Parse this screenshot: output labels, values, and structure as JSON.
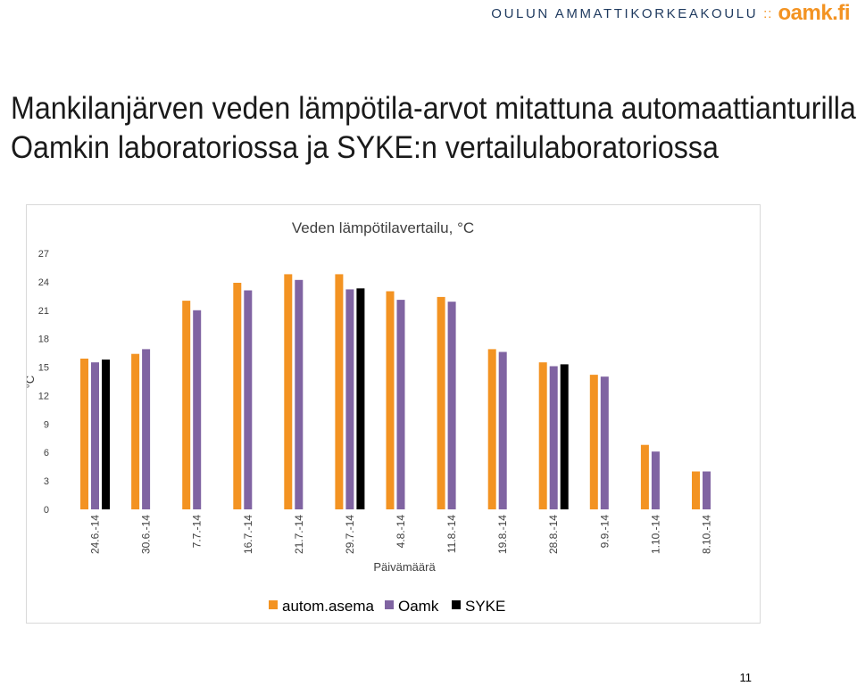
{
  "header": {
    "school_name": "OULUN AMMATTIKORKEAKOULU",
    "separator": "::",
    "logo": "oamk.fi",
    "accent_color": "#f39322"
  },
  "slide": {
    "title_line1": "Mankilanjärven veden lämpötila-arvot mitattuna automaattianturilla",
    "title_line2": "Oamkin laboratoriossa ja SYKE:n vertailulaboratoriossa",
    "page_number": "11"
  },
  "chart_data": {
    "type": "bar",
    "title": "Veden lämpötilavertailu, °C",
    "xlabel": "Päivämäärä",
    "ylabel": "°C",
    "ylim": [
      0,
      27
    ],
    "yticks": [
      0,
      3,
      6,
      9,
      12,
      15,
      18,
      21,
      24,
      27
    ],
    "grid": false,
    "legend_position": "bottom",
    "categories": [
      "24.6.-14",
      "30.6.-14",
      "7.7.-14",
      "16.7.-14",
      "21.7.-14",
      "29.7.-14",
      "4.8.-14",
      "11.8.-14",
      "19.8.-14",
      "28.8.-14",
      "9.9.-14",
      "1.10.-14",
      "8.10.-14"
    ],
    "series": [
      {
        "name": "autom.asema",
        "color": "#f39322",
        "values": [
          15.9,
          16.4,
          22.0,
          23.9,
          24.8,
          24.8,
          23.0,
          22.4,
          16.9,
          15.5,
          14.2,
          6.8,
          4.0
        ]
      },
      {
        "name": "Oamk",
        "color": "#8064a2",
        "values": [
          15.5,
          16.9,
          21.0,
          23.1,
          24.2,
          23.2,
          22.1,
          21.9,
          16.6,
          15.1,
          14.0,
          6.1,
          4.0
        ]
      },
      {
        "name": "SYKE",
        "color": "#000000",
        "values": [
          15.8,
          null,
          null,
          null,
          null,
          23.3,
          null,
          null,
          null,
          15.3,
          null,
          null,
          null
        ]
      }
    ]
  }
}
